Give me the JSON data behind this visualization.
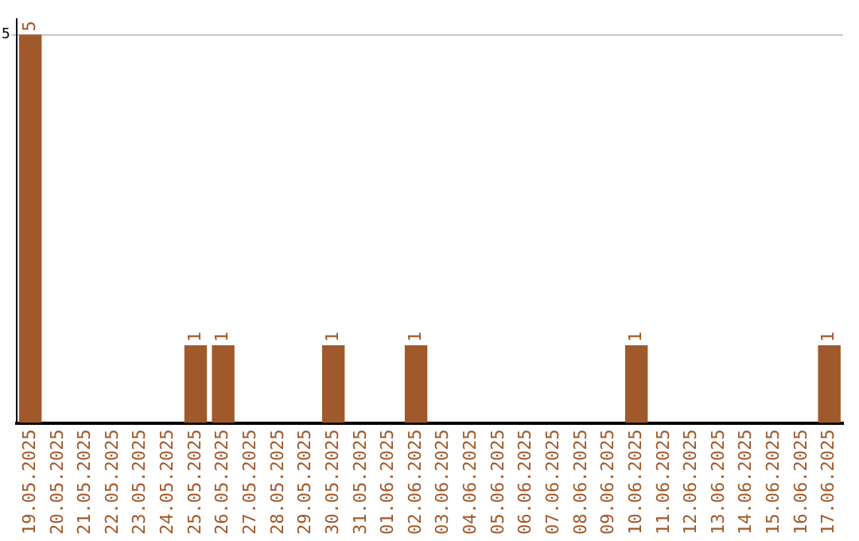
{
  "chart_data": {
    "type": "bar",
    "categories": [
      "19.05.2025",
      "20.05.2025",
      "21.05.2025",
      "22.05.2025",
      "23.05.2025",
      "24.05.2025",
      "25.05.2025",
      "26.05.2025",
      "27.05.2025",
      "28.05.2025",
      "29.05.2025",
      "30.05.2025",
      "31.05.2025",
      "01.06.2025",
      "02.06.2025",
      "03.06.2025",
      "04.06.2025",
      "05.06.2025",
      "06.06.2025",
      "07.06.2025",
      "08.06.2025",
      "09.06.2025",
      "10.06.2025",
      "11.06.2025",
      "12.06.2025",
      "13.06.2025",
      "14.06.2025",
      "15.06.2025",
      "16.06.2025",
      "17.06.2025"
    ],
    "values": [
      5,
      0,
      0,
      0,
      0,
      0,
      1,
      1,
      0,
      0,
      0,
      1,
      0,
      0,
      1,
      0,
      0,
      0,
      0,
      0,
      0,
      0,
      1,
      0,
      0,
      0,
      0,
      0,
      0,
      1
    ],
    "value_labels": [
      "5",
      null,
      null,
      null,
      null,
      null,
      "1",
      "1",
      null,
      null,
      null,
      "1",
      null,
      null,
      "1",
      null,
      null,
      null,
      null,
      null,
      null,
      null,
      "1",
      null,
      null,
      null,
      null,
      null,
      null,
      "1"
    ],
    "color": "#a0592a",
    "ylim": [
      0,
      5.2
    ],
    "yticks": [
      5
    ],
    "grid": "y",
    "legend": false
  }
}
